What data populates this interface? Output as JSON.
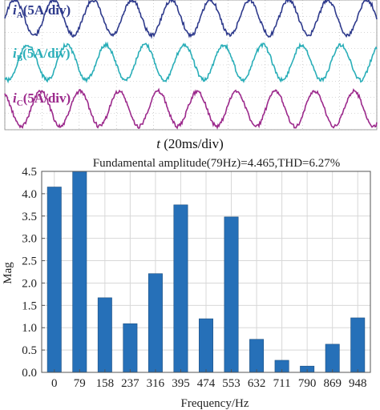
{
  "scope": {
    "time_label_var": "t",
    "time_label_rest": " (20ms/div)",
    "traces": [
      {
        "var": "i",
        "sub": "A",
        "scale": "(5A/div)",
        "color": "#2e3a8c"
      },
      {
        "var": "i",
        "sub": "B",
        "scale": "(5A/div)",
        "color": "#2aaeb8"
      },
      {
        "var": "i",
        "sub": "C",
        "scale": "(5A/div)",
        "color": "#9c2a8c"
      }
    ],
    "cycles_visible": 9.5
  },
  "chart_data": {
    "type": "bar",
    "title": "Fundamental amplitude(79Hz)=4.465,THD=6.27%",
    "xlabel": "Frequency/Hz",
    "ylabel": "Mag",
    "categories": [
      "0",
      "79",
      "158",
      "237",
      "316",
      "395",
      "474",
      "553",
      "632",
      "711",
      "790",
      "869",
      "948"
    ],
    "values": [
      4.15,
      4.5,
      1.67,
      1.09,
      2.21,
      3.75,
      1.2,
      3.48,
      0.74,
      0.27,
      0.14,
      0.63,
      1.22
    ],
    "ylim": [
      0,
      4.5
    ],
    "yticks": [
      "0.0",
      "0.5",
      "1.0",
      "1.5",
      "2.0",
      "2.5",
      "3.0",
      "3.5",
      "4.0",
      "4.5"
    ],
    "bar_color": "#2670b8",
    "grid": true
  }
}
